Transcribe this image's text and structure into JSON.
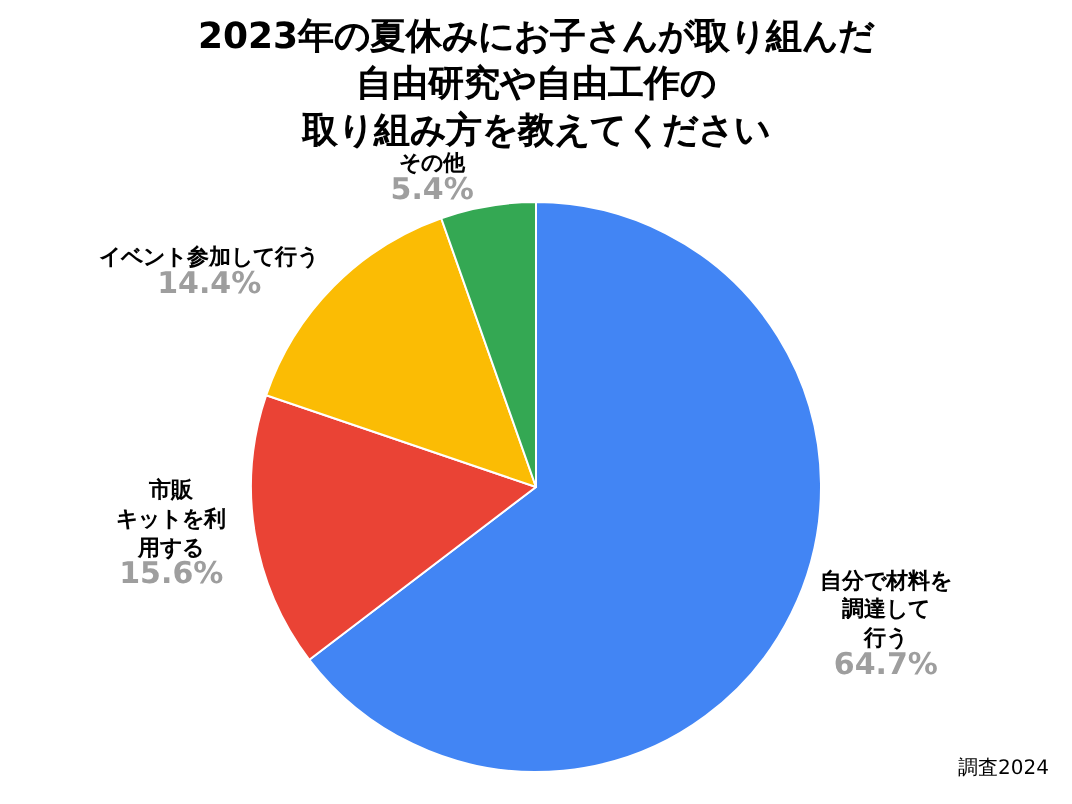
{
  "chart_data": {
    "type": "pie",
    "title": "2023年の夏休みにお子さんが取り組んだ自由研究や自由工作の取り組み方を教えてください",
    "categories": [
      "自分で材料を調達して行う",
      "市販キットを利用する",
      "イベント参加して行う",
      "その他"
    ],
    "values": [
      64.7,
      15.6,
      14.4,
      5.4
    ],
    "value_labels": [
      "64.7%",
      "15.6%",
      "14.4%",
      "5.4%"
    ],
    "colors": [
      "#4285f4",
      "#ea4335",
      "#fbbc04",
      "#34a853"
    ],
    "annotations": [
      "調査2024"
    ],
    "legend": false
  }
}
